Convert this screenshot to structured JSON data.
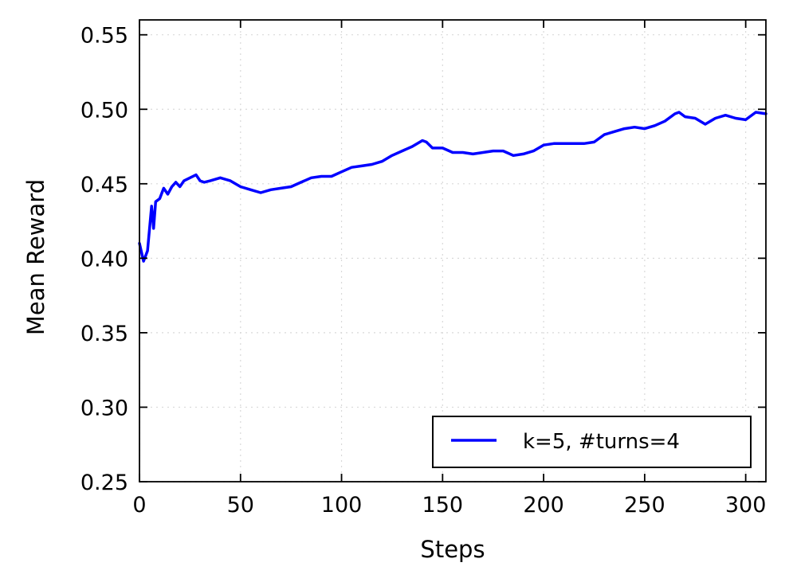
{
  "chart_data": {
    "type": "line",
    "xlabel": "Steps",
    "ylabel": "Mean Reward",
    "xlim": [
      0,
      310
    ],
    "ylim": [
      0.25,
      0.56
    ],
    "xticks": [
      0,
      50,
      100,
      150,
      200,
      250,
      300
    ],
    "yticks": [
      0.25,
      0.3,
      0.35,
      0.4,
      0.45,
      0.5,
      0.55
    ],
    "xtick_labels": [
      "0",
      "50",
      "100",
      "150",
      "200",
      "250",
      "300"
    ],
    "ytick_labels": [
      "0.25",
      "0.30",
      "0.35",
      "0.40",
      "0.45",
      "0.50",
      "0.55"
    ],
    "grid": true,
    "legend_position": "lower-right",
    "series": [
      {
        "name": "k=5, #turns=4",
        "color": "#0000ff",
        "x": [
          0,
          2,
          4,
          6,
          7,
          8,
          10,
          12,
          14,
          16,
          18,
          20,
          22,
          25,
          28,
          30,
          32,
          35,
          40,
          45,
          50,
          55,
          60,
          65,
          70,
          75,
          80,
          85,
          90,
          95,
          100,
          105,
          110,
          115,
          120,
          125,
          130,
          135,
          140,
          142,
          145,
          150,
          155,
          160,
          165,
          170,
          175,
          180,
          185,
          190,
          195,
          200,
          205,
          210,
          215,
          220,
          225,
          230,
          235,
          240,
          245,
          250,
          255,
          260,
          265,
          267,
          270,
          275,
          280,
          285,
          290,
          295,
          300,
          305,
          310
        ],
        "values": [
          0.41,
          0.398,
          0.405,
          0.435,
          0.42,
          0.438,
          0.44,
          0.447,
          0.443,
          0.448,
          0.451,
          0.448,
          0.452,
          0.454,
          0.456,
          0.452,
          0.451,
          0.452,
          0.454,
          0.452,
          0.448,
          0.446,
          0.444,
          0.446,
          0.447,
          0.448,
          0.451,
          0.454,
          0.455,
          0.455,
          0.458,
          0.461,
          0.462,
          0.463,
          0.465,
          0.469,
          0.472,
          0.475,
          0.479,
          0.478,
          0.474,
          0.474,
          0.471,
          0.471,
          0.47,
          0.471,
          0.472,
          0.472,
          0.469,
          0.47,
          0.472,
          0.476,
          0.477,
          0.477,
          0.477,
          0.477,
          0.478,
          0.483,
          0.485,
          0.487,
          0.488,
          0.487,
          0.489,
          0.492,
          0.497,
          0.498,
          0.495,
          0.494,
          0.49,
          0.494,
          0.496,
          0.494,
          0.493,
          0.498,
          0.497
        ]
      }
    ]
  }
}
